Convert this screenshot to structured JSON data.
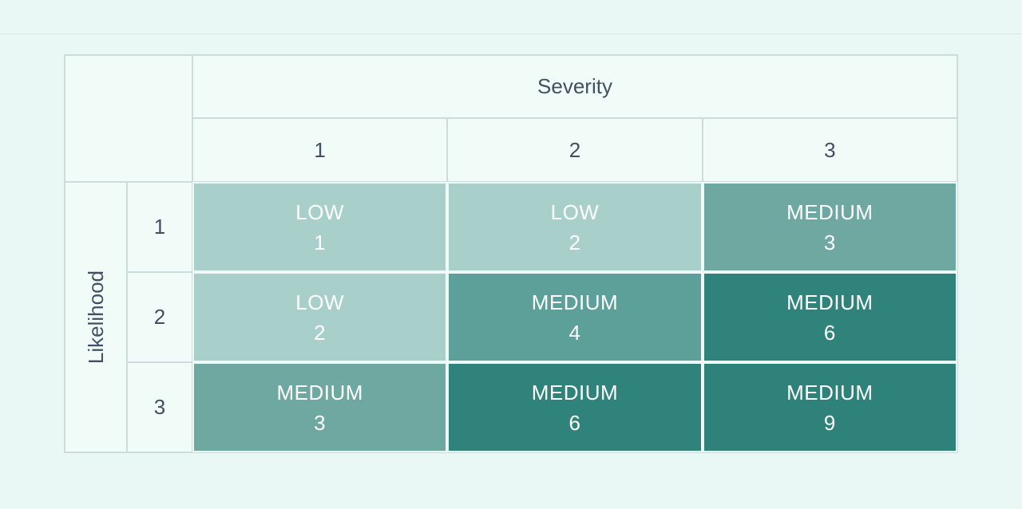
{
  "theme": {
    "page_bg": "#e9f8f5",
    "top_line": "#d6e9e4",
    "grid_line": "#ccdcd8",
    "header_cell_bg": "#f1fcf9",
    "header_text": "#424f63",
    "cell_text": "#ffffff",
    "cell_gap": "#edfaf7"
  },
  "chart_data": {
    "type": "heatmap",
    "subtype": "risk-matrix",
    "x_axis": {
      "label": "Severity",
      "categories": [
        "1",
        "2",
        "3"
      ]
    },
    "y_axis": {
      "label": "Likelihood",
      "categories": [
        "1",
        "2",
        "3"
      ]
    },
    "legend": "none",
    "grid": true,
    "rows": [
      [
        {
          "level": "LOW",
          "score": "1",
          "color": "#a8cfc9"
        },
        {
          "level": "LOW",
          "score": "2",
          "color": "#a8cfc9"
        },
        {
          "level": "MEDIUM",
          "score": "3",
          "color": "#6ea8a1"
        }
      ],
      [
        {
          "level": "LOW",
          "score": "2",
          "color": "#a8cfc9"
        },
        {
          "level": "MEDIUM",
          "score": "4",
          "color": "#5da099"
        },
        {
          "level": "MEDIUM",
          "score": "6",
          "color": "#2f837b"
        }
      ],
      [
        {
          "level": "MEDIUM",
          "score": "3",
          "color": "#6ea8a1"
        },
        {
          "level": "MEDIUM",
          "score": "6",
          "color": "#2f837b"
        },
        {
          "level": "MEDIUM",
          "score": "9",
          "color": "#2f827a"
        }
      ]
    ]
  }
}
